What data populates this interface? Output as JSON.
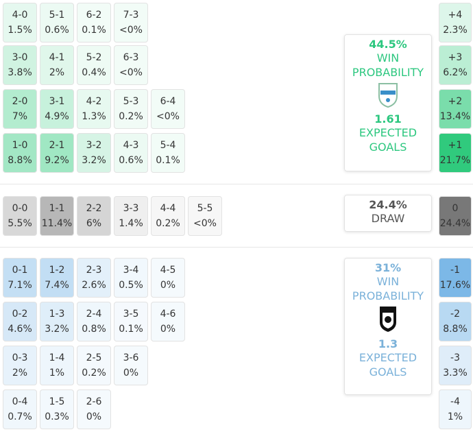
{
  "home": {
    "rows": [
      [
        [
          "4-0",
          "1.5%"
        ],
        [
          "5-1",
          "0.6%"
        ],
        [
          "6-2",
          "0.1%"
        ],
        [
          "7-3",
          "<0%"
        ]
      ],
      [
        [
          "3-0",
          "3.8%"
        ],
        [
          "4-1",
          "2%"
        ],
        [
          "5-2",
          "0.4%"
        ],
        [
          "6-3",
          "<0%"
        ]
      ],
      [
        [
          "2-0",
          "7%"
        ],
        [
          "3-1",
          "4.9%"
        ],
        [
          "4-2",
          "1.3%"
        ],
        [
          "5-3",
          "0.2%"
        ],
        [
          "6-4",
          "<0%"
        ]
      ],
      [
        [
          "1-0",
          "8.8%"
        ],
        [
          "2-1",
          "9.2%"
        ],
        [
          "3-2",
          "3.2%"
        ],
        [
          "4-3",
          "0.6%"
        ],
        [
          "5-4",
          "0.1%"
        ]
      ]
    ],
    "margins": [
      [
        "+4",
        "2.3%"
      ],
      [
        "+3",
        "6.2%"
      ],
      [
        "+2",
        "13.4%"
      ],
      [
        "+1",
        "21.7%"
      ]
    ],
    "card": {
      "probability": "44.5%",
      "label": "WIN PROBABILITY",
      "xg": "1.61",
      "xg_label": "EXPECTED GOALS"
    }
  },
  "draw": {
    "rows": [
      [
        [
          "0-0",
          "5.5%"
        ],
        [
          "1-1",
          "11.4%"
        ],
        [
          "2-2",
          "6%"
        ],
        [
          "3-3",
          "1.4%"
        ],
        [
          "4-4",
          "0.2%"
        ],
        [
          "5-5",
          "<0%"
        ]
      ]
    ],
    "margins": [
      [
        "0",
        "24.4%"
      ]
    ],
    "card": {
      "probability": "24.4%",
      "label": "DRAW"
    }
  },
  "away": {
    "rows": [
      [
        [
          "0-1",
          "7.1%"
        ],
        [
          "1-2",
          "7.4%"
        ],
        [
          "2-3",
          "2.6%"
        ],
        [
          "3-4",
          "0.5%"
        ],
        [
          "4-5",
          "0%"
        ]
      ],
      [
        [
          "0-2",
          "4.6%"
        ],
        [
          "1-3",
          "3.2%"
        ],
        [
          "2-4",
          "0.8%"
        ],
        [
          "3-5",
          "0.1%"
        ],
        [
          "4-6",
          "0%"
        ]
      ],
      [
        [
          "0-3",
          "2%"
        ],
        [
          "1-4",
          "1%"
        ],
        [
          "2-5",
          "0.2%"
        ],
        [
          "3-6",
          "0%"
        ]
      ],
      [
        [
          "0-4",
          "0.7%"
        ],
        [
          "1-5",
          "0.3%"
        ],
        [
          "2-6",
          "0%"
        ]
      ]
    ],
    "margins": [
      [
        "-1",
        "17.6%"
      ],
      [
        "-2",
        "8.8%"
      ],
      [
        "-3",
        "3.3%"
      ],
      [
        "-4",
        "1%"
      ]
    ],
    "card": {
      "probability": "31%",
      "label": "WIN PROBABILITY",
      "xg": "1.3",
      "xg_label": "EXPECTED GOALS"
    }
  }
}
